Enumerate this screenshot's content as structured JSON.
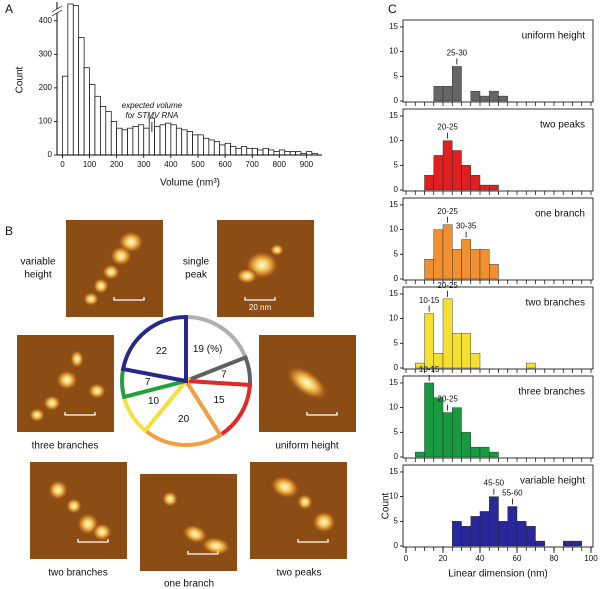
{
  "panels": [
    "A",
    "B",
    "C"
  ],
  "chart_data": [
    {
      "type": "histogram",
      "ylabel": "Count",
      "xlabel": "Volume (nm³)",
      "bins": [
        0,
        20,
        40,
        60,
        80,
        100,
        120,
        140,
        160,
        180,
        200,
        220,
        240,
        260,
        280,
        300,
        320,
        340,
        360,
        380,
        400,
        420,
        440,
        460,
        480,
        500,
        520,
        540,
        560,
        580,
        600,
        620,
        640,
        660,
        680,
        700,
        720,
        740,
        760,
        780,
        800,
        820,
        840,
        860,
        880,
        900,
        920,
        940
      ],
      "values": [
        235,
        450,
        445,
        350,
        260,
        210,
        175,
        145,
        130,
        100,
        80,
        75,
        80,
        85,
        90,
        80,
        110,
        85,
        90,
        95,
        90,
        80,
        75,
        70,
        60,
        60,
        50,
        45,
        40,
        30,
        35,
        25,
        20,
        25,
        20,
        20,
        15,
        20,
        15,
        10,
        15,
        10,
        10,
        10,
        5,
        10,
        5
      ],
      "xlim": [
        -20,
        950
      ],
      "xticks": [
        0,
        100,
        200,
        300,
        400,
        500,
        600,
        700,
        800,
        900
      ],
      "ylim": [
        0,
        450
      ],
      "yticks": [
        0,
        100,
        200,
        300,
        400
      ],
      "color": "#ffffff",
      "annotation": [
        "expected volume",
        "for STMV RNA"
      ]
    },
    {
      "type": "pie",
      "values": [
        19,
        7,
        15,
        20,
        10,
        7,
        22
      ],
      "value_labels": [
        "19 (%)",
        "7",
        "15",
        "20",
        "10",
        "7",
        "22"
      ],
      "colors": [
        "#b0b0b0",
        "#606060",
        "#e02a2a",
        "#f0a040",
        "#f5e040",
        "#20a040",
        "#28288c"
      ]
    },
    {
      "type": "histogram",
      "title": "uniform height",
      "color": "#666666",
      "bins": [
        0,
        5,
        10,
        15,
        20,
        25,
        30,
        35,
        40,
        45,
        50,
        55,
        60,
        65,
        70,
        75,
        80,
        85,
        90,
        95,
        100
      ],
      "values": [
        0,
        0,
        0,
        3,
        3,
        7,
        0,
        2,
        1,
        2,
        1,
        0,
        0,
        0,
        0,
        0,
        0,
        0,
        0,
        0
      ],
      "xlim": [
        0,
        100
      ],
      "ylim": [
        0,
        16
      ],
      "yticks": [
        0,
        5,
        10,
        15
      ],
      "annotations": [
        "25-30"
      ]
    },
    {
      "type": "histogram",
      "title": "two peaks",
      "color": "#e02020",
      "bins": [
        0,
        5,
        10,
        15,
        20,
        25,
        30,
        35,
        40,
        45,
        50,
        55,
        60,
        65,
        70,
        75,
        80,
        85,
        90,
        95,
        100
      ],
      "values": [
        0,
        0,
        3,
        7,
        10,
        8,
        5,
        3,
        1,
        1,
        0,
        0,
        0,
        0,
        0,
        0,
        0,
        0,
        0,
        0
      ],
      "xlim": [
        0,
        100
      ],
      "ylim": [
        0,
        16
      ],
      "yticks": [
        0,
        5,
        10,
        15
      ],
      "annotations": [
        "20-25"
      ]
    },
    {
      "type": "histogram",
      "title": "one branch",
      "color": "#f09030",
      "bins": [
        0,
        5,
        10,
        15,
        20,
        25,
        30,
        35,
        40,
        45,
        50,
        55,
        60,
        65,
        70,
        75,
        80,
        85,
        90,
        95,
        100
      ],
      "values": [
        0,
        0,
        4,
        10,
        11,
        6,
        8,
        6,
        6,
        3,
        0,
        0,
        0,
        0,
        0,
        0,
        0,
        0,
        0,
        0
      ],
      "xlim": [
        0,
        100
      ],
      "ylim": [
        0,
        16
      ],
      "yticks": [
        0,
        5,
        10,
        15
      ],
      "annotations": [
        "20-25",
        "30-35"
      ]
    },
    {
      "type": "histogram",
      "title": "two branches",
      "color": "#f5e030",
      "bins": [
        0,
        5,
        10,
        15,
        20,
        25,
        30,
        35,
        40,
        45,
        50,
        55,
        60,
        65,
        70,
        75,
        80,
        85,
        90,
        95,
        100
      ],
      "values": [
        0,
        1,
        11,
        3,
        14,
        7,
        7,
        3,
        0,
        0,
        0,
        0,
        0,
        1,
        0,
        0,
        0,
        0,
        0,
        0
      ],
      "xlim": [
        0,
        100
      ],
      "ylim": [
        0,
        16
      ],
      "yticks": [
        0,
        5,
        10,
        15
      ],
      "annotations": [
        "10-15",
        "20-25"
      ]
    },
    {
      "type": "histogram",
      "title": "three branches",
      "color": "#1a9a40",
      "bins": [
        0,
        5,
        10,
        15,
        20,
        25,
        30,
        35,
        40,
        45,
        50,
        55,
        60,
        65,
        70,
        75,
        80,
        85,
        90,
        95,
        100
      ],
      "values": [
        0,
        1,
        15,
        12,
        9,
        10,
        5,
        2,
        2,
        1,
        0,
        0,
        0,
        0,
        0,
        0,
        0,
        0,
        0,
        0
      ],
      "xlim": [
        0,
        100
      ],
      "ylim": [
        0,
        16
      ],
      "yticks": [
        0,
        5,
        10,
        15
      ],
      "annotations": [
        "10-15",
        "20-25"
      ]
    },
    {
      "type": "histogram",
      "title": "variable height",
      "color": "#28289a",
      "bins": [
        0,
        5,
        10,
        15,
        20,
        25,
        30,
        35,
        40,
        45,
        50,
        55,
        60,
        65,
        70,
        75,
        80,
        85,
        90,
        95,
        100
      ],
      "values": [
        0,
        0,
        0,
        0,
        0,
        5,
        4,
        6,
        7,
        10,
        5,
        8,
        5,
        4,
        1,
        0,
        0,
        1,
        1,
        0
      ],
      "xlim": [
        0,
        100
      ],
      "ylim": [
        0,
        16
      ],
      "yticks": [
        0,
        5,
        10,
        15
      ],
      "annotations": [
        "45-50",
        "55-60"
      ],
      "xticks": [
        0,
        20,
        40,
        60,
        80,
        100
      ],
      "xlabel": "Linear dimension (nm)",
      "ylabel": "Count"
    }
  ],
  "images": [
    {
      "label": [
        "variable",
        "height"
      ]
    },
    {
      "label": [
        "single",
        "peak"
      ],
      "scale": "20 nm"
    },
    {
      "label": [
        "three branches"
      ]
    },
    {
      "label": [
        "uniform height"
      ]
    },
    {
      "label": [
        "two branches"
      ]
    },
    {
      "label": [
        "one branch"
      ]
    },
    {
      "label": [
        "two peaks"
      ]
    }
  ]
}
